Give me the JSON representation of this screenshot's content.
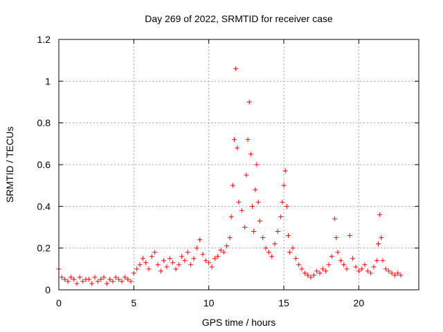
{
  "chart_data": {
    "type": "scatter",
    "title": "Day 269 of 2022, SRMTID for receiver case",
    "xlabel": "GPS time / hours",
    "ylabel": "SRMTID / TECUs",
    "xlim": [
      0,
      24
    ],
    "ylim": [
      0,
      1.2
    ],
    "xticks": [
      0,
      5,
      10,
      15,
      20
    ],
    "xtick_labels": [
      "0",
      "5",
      "10",
      "15",
      "20"
    ],
    "yticks": [
      0,
      0.2,
      0.4,
      0.6,
      0.8,
      1.0,
      1.2
    ],
    "ytick_labels": [
      "0",
      "0.2",
      "0.4",
      "0.6",
      "0.8",
      "1",
      "1.2"
    ],
    "grid": true,
    "marker": "plus",
    "series_color": "#ff0000",
    "series": [
      {
        "name": "SRMTID",
        "x": [
          0.0,
          0.2,
          0.4,
          0.6,
          0.8,
          1.0,
          1.2,
          1.4,
          1.6,
          1.8,
          2.0,
          2.2,
          2.4,
          2.6,
          2.8,
          3.0,
          3.2,
          3.4,
          3.6,
          3.8,
          4.0,
          4.2,
          4.4,
          4.6,
          4.8,
          5.0,
          5.2,
          5.4,
          5.6,
          5.8,
          6.0,
          6.2,
          6.4,
          6.6,
          6.8,
          7.0,
          7.2,
          7.4,
          7.6,
          7.8,
          8.0,
          8.2,
          8.4,
          8.6,
          8.8,
          9.0,
          9.2,
          9.4,
          9.6,
          9.8,
          10.0,
          10.2,
          10.4,
          10.6,
          10.8,
          11.0,
          11.2,
          11.4,
          11.5,
          11.6,
          11.7,
          11.8,
          11.9,
          12.0,
          12.2,
          12.4,
          12.5,
          12.6,
          12.7,
          12.8,
          12.9,
          13.0,
          13.1,
          13.2,
          13.3,
          13.4,
          13.6,
          13.8,
          14.0,
          14.2,
          14.4,
          14.6,
          14.8,
          14.9,
          15.0,
          15.1,
          15.2,
          15.3,
          15.4,
          15.6,
          15.8,
          16.0,
          16.2,
          16.4,
          16.6,
          16.8,
          17.0,
          17.2,
          17.4,
          17.6,
          17.8,
          18.0,
          18.2,
          18.4,
          18.5,
          18.6,
          18.8,
          19.0,
          19.2,
          19.4,
          19.6,
          19.8,
          20.0,
          20.2,
          20.4,
          20.6,
          20.8,
          21.0,
          21.2,
          21.3,
          21.4,
          21.5,
          21.6,
          21.8,
          22.0,
          22.2,
          22.4,
          22.6,
          22.8
        ],
        "y": [
          0.1,
          0.06,
          0.05,
          0.04,
          0.06,
          0.05,
          0.03,
          0.06,
          0.04,
          0.05,
          0.05,
          0.03,
          0.06,
          0.04,
          0.05,
          0.06,
          0.03,
          0.05,
          0.04,
          0.06,
          0.05,
          0.04,
          0.06,
          0.05,
          0.04,
          0.08,
          0.1,
          0.12,
          0.15,
          0.13,
          0.1,
          0.16,
          0.18,
          0.12,
          0.09,
          0.14,
          0.11,
          0.15,
          0.13,
          0.1,
          0.12,
          0.16,
          0.14,
          0.18,
          0.12,
          0.15,
          0.2,
          0.24,
          0.17,
          0.14,
          0.13,
          0.11,
          0.15,
          0.16,
          0.19,
          0.18,
          0.21,
          0.25,
          0.35,
          0.5,
          0.72,
          1.06,
          0.68,
          0.42,
          0.38,
          0.3,
          0.55,
          0.72,
          0.9,
          0.65,
          0.4,
          0.28,
          0.48,
          0.6,
          0.42,
          0.33,
          0.25,
          0.2,
          0.18,
          0.16,
          0.22,
          0.28,
          0.35,
          0.42,
          0.5,
          0.57,
          0.4,
          0.26,
          0.18,
          0.2,
          0.15,
          0.12,
          0.1,
          0.08,
          0.07,
          0.06,
          0.07,
          0.09,
          0.08,
          0.1,
          0.09,
          0.12,
          0.16,
          0.34,
          0.25,
          0.18,
          0.14,
          0.12,
          0.1,
          0.26,
          0.15,
          0.11,
          0.09,
          0.1,
          0.12,
          0.09,
          0.08,
          0.11,
          0.14,
          0.22,
          0.36,
          0.25,
          0.14,
          0.1,
          0.09,
          0.08,
          0.07,
          0.08,
          0.07
        ]
      }
    ]
  }
}
